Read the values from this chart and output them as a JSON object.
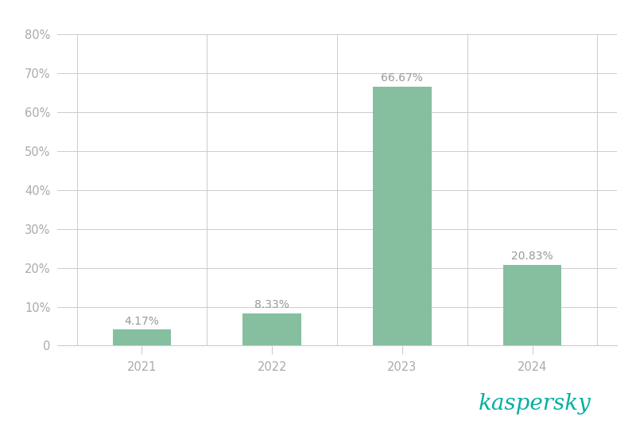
{
  "categories": [
    "2021",
    "2022",
    "2023",
    "2024"
  ],
  "values": [
    4.17,
    8.33,
    66.67,
    20.83
  ],
  "labels": [
    "4.17%",
    "8.33%",
    "66.67%",
    "20.83%"
  ],
  "bar_color": "#85bfa0",
  "background_color": "#ffffff",
  "grid_color": "#cccccc",
  "tick_color": "#aaaaaa",
  "annotation_color": "#999999",
  "ylim": [
    0,
    80
  ],
  "yticks": [
    0,
    10,
    20,
    30,
    40,
    50,
    60,
    70,
    80
  ],
  "ytick_labels": [
    "0",
    "10%",
    "20%",
    "30%",
    "40%",
    "50%",
    "60%",
    "70%",
    "80%"
  ],
  "bar_width": 0.45,
  "tick_fontsize": 10.5,
  "annotation_fontsize": 10,
  "kaspersky_text": "kaspersky",
  "kaspersky_color": "#00b0a0",
  "kaspersky_fontsize": 20
}
